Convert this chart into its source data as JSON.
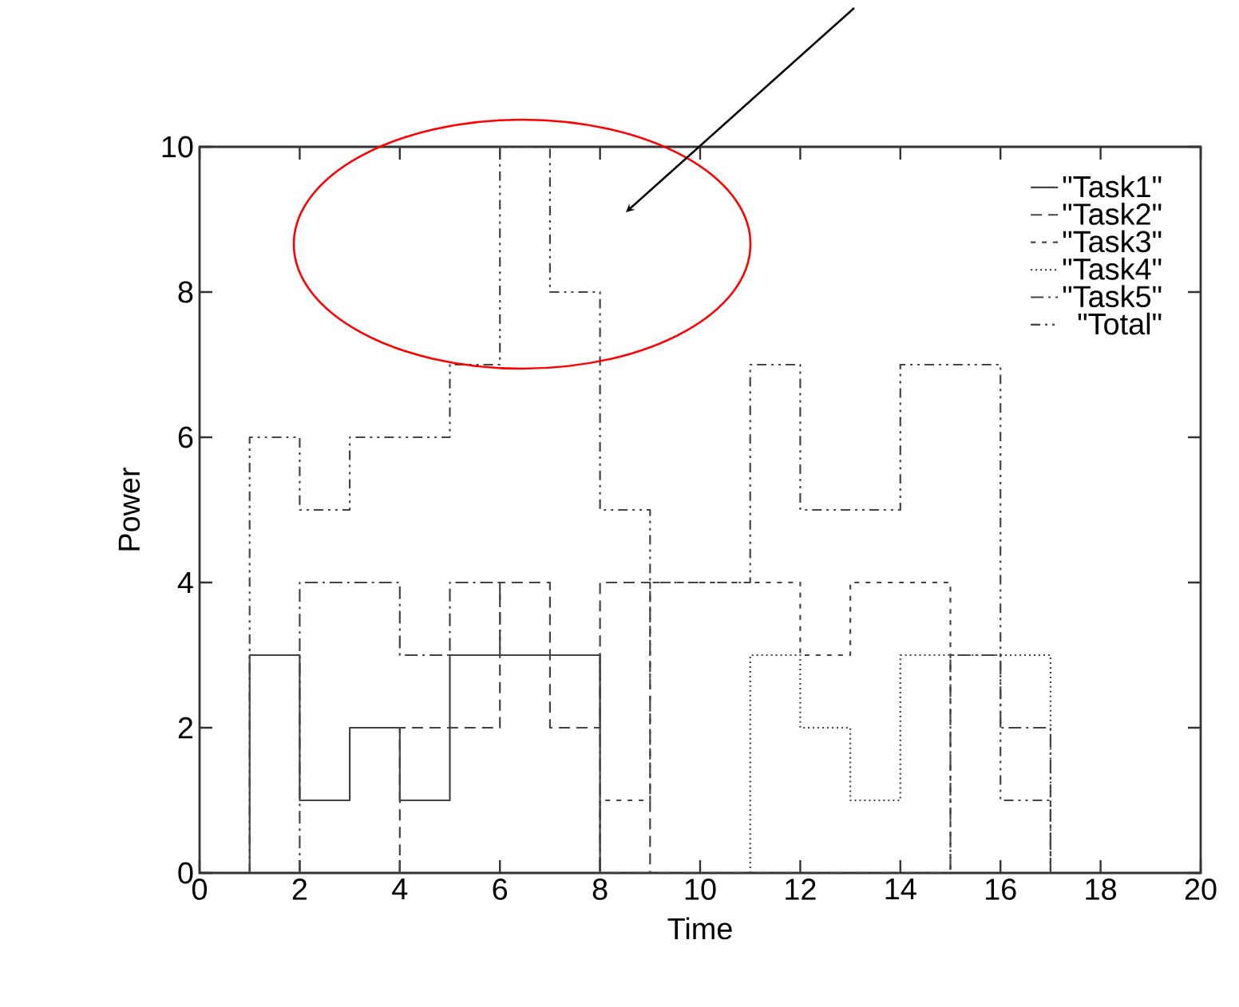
{
  "chart_data": {
    "type": "step",
    "xlabel": "Time",
    "ylabel": "Power",
    "xlim": [
      0,
      20
    ],
    "xticks": [
      0,
      2,
      4,
      6,
      8,
      10,
      12,
      14,
      16,
      18,
      20
    ],
    "ylim": [
      0,
      10
    ],
    "yticks": [
      0,
      2,
      4,
      6,
      8,
      10
    ],
    "legend": "top right",
    "grid": false,
    "marker": "none",
    "series": [
      {
        "name": "\"Task1\"",
        "color": "#444444",
        "line_style": "solid",
        "x": [
          1,
          1,
          2,
          3,
          4,
          5,
          8
        ],
        "values": [
          0,
          3,
          1,
          2,
          1,
          3,
          0
        ]
      },
      {
        "name": "\"Task2\"",
        "color": "#444444",
        "line_style": "dashed",
        "x": [
          4,
          4,
          6,
          7,
          8,
          9
        ],
        "values": [
          0,
          2,
          4,
          2,
          4,
          0
        ]
      },
      {
        "name": "\"Task3\"",
        "color": "#444444",
        "line_style": "shortdashed",
        "x": [
          8,
          8,
          9,
          12,
          13,
          15
        ],
        "values": [
          0,
          1,
          4,
          3,
          4,
          0
        ]
      },
      {
        "name": "\"Task4\"",
        "color": "#444444",
        "line_style": "dotted",
        "x": [
          11,
          11,
          12,
          13,
          14,
          17
        ],
        "values": [
          0,
          3,
          2,
          1,
          3,
          0
        ]
      },
      {
        "name": "\"Task5\"",
        "color": "#444444",
        "line_style": "dashdot",
        "x": [
          2,
          2,
          4,
          5,
          6,
          8,
          15,
          16,
          17
        ],
        "values": [
          0,
          4,
          3,
          4,
          3,
          0,
          3,
          2,
          0
        ]
      },
      {
        "name": "\"Total\"",
        "color": "#444444",
        "line_style": "dashdotdot",
        "x": [
          1,
          1,
          2,
          3,
          5,
          6,
          7,
          8,
          9,
          11,
          12,
          14,
          16,
          17
        ],
        "values": [
          0,
          6,
          5,
          6,
          7,
          10,
          8,
          5,
          4,
          7,
          5,
          7,
          1,
          0
        ]
      }
    ]
  }
}
